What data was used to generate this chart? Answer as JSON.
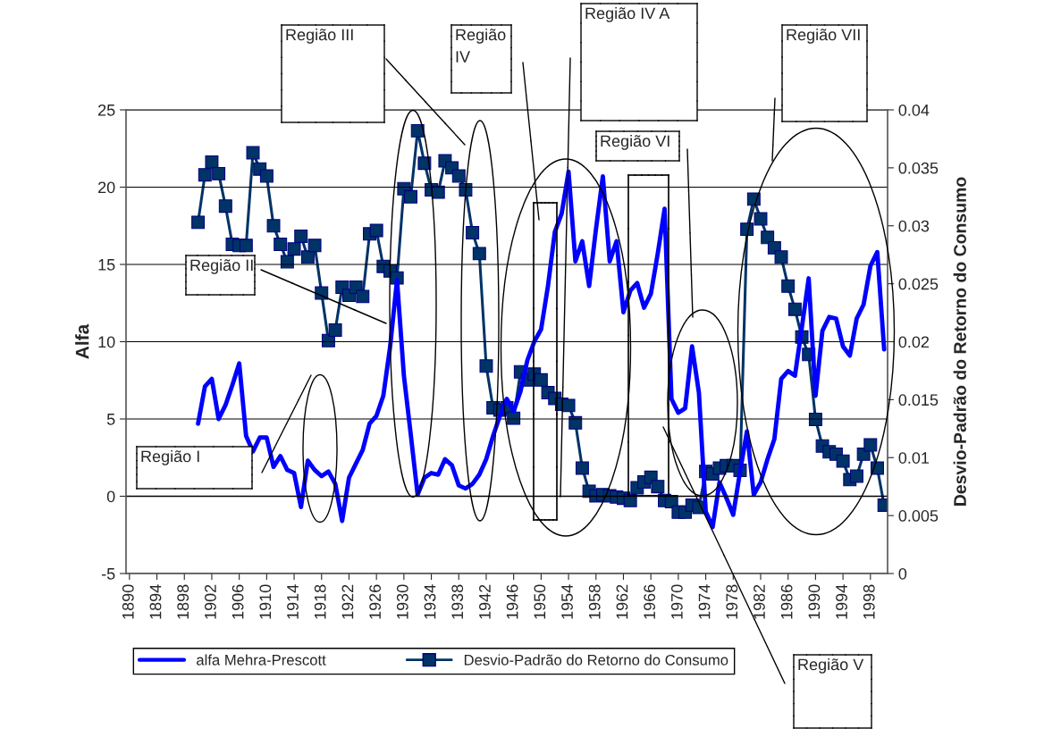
{
  "chart_data": {
    "type": "line",
    "ylabel": "Alfa",
    "y2label": "Desvio-Padrão do Retorno do Consumo",
    "x": [
      1900,
      1901,
      1902,
      1903,
      1904,
      1905,
      1906,
      1907,
      1908,
      1909,
      1910,
      1911,
      1912,
      1913,
      1914,
      1915,
      1916,
      1917,
      1918,
      1919,
      1920,
      1921,
      1922,
      1923,
      1924,
      1925,
      1926,
      1927,
      1928,
      1929,
      1930,
      1931,
      1932,
      1933,
      1934,
      1935,
      1936,
      1937,
      1938,
      1939,
      1940,
      1941,
      1942,
      1943,
      1944,
      1945,
      1946,
      1947,
      1948,
      1949,
      1950,
      1951,
      1952,
      1953,
      1954,
      1955,
      1956,
      1957,
      1958,
      1959,
      1960,
      1961,
      1962,
      1963,
      1964,
      1965,
      1966,
      1967,
      1968,
      1969,
      1970,
      1971,
      1972,
      1973,
      1974,
      1975,
      1976,
      1977,
      1978,
      1979,
      1980,
      1981,
      1982,
      1983,
      1984,
      1985,
      1986,
      1987,
      1988,
      1989,
      1990,
      1991,
      1992,
      1993,
      1994,
      1995,
      1996,
      1997,
      1998,
      1999,
      2000
    ],
    "series": [
      {
        "name": "alfa Mehra-Prescott",
        "color": "#0000ff",
        "marker": "none",
        "values": [
          4.7,
          7.1,
          7.6,
          5.0,
          5.9,
          7.2,
          8.6,
          3.9,
          2.9,
          3.8,
          3.8,
          1.9,
          2.6,
          1.7,
          1.5,
          -0.7,
          2.3,
          1.7,
          1.3,
          1.6,
          0.8,
          -1.6,
          1.2,
          2.1,
          3.0,
          4.7,
          5.2,
          6.5,
          9.7,
          14.0,
          7.8,
          4.0,
          0.1,
          1.2,
          1.5,
          1.4,
          2.4,
          2.0,
          0.7,
          0.5,
          0.8,
          1.4,
          2.4,
          3.9,
          5.2,
          6.3,
          5.5,
          6.8,
          8.8,
          10.0,
          10.8,
          13.6,
          17.1,
          18.3,
          21.0,
          15.2,
          16.5,
          13.6,
          17.3,
          20.7,
          15.2,
          16.5,
          11.9,
          13.3,
          13.8,
          12.2,
          13.1,
          15.7,
          18.6,
          6.3,
          5.4,
          5.7,
          9.7,
          6.7,
          -1.0,
          -2.0,
          0.9,
          -0.1,
          -1.2,
          1.6,
          4.2,
          0.1,
          0.9,
          2.4,
          3.7,
          7.6,
          8.1,
          7.8,
          10.9,
          14.1,
          6.5,
          10.7,
          11.6,
          11.5,
          9.7,
          9.1,
          11.5,
          12.4,
          14.9,
          15.8,
          9.5
        ]
      },
      {
        "name": "Desvio-Padrão do Retorno do Consumo",
        "color": "#003366",
        "marker": "square",
        "axis": "y2",
        "values": [
          0.0303,
          0.0344,
          0.0355,
          0.0345,
          0.0317,
          0.0284,
          0.0283,
          0.0283,
          0.0363,
          0.0349,
          0.0343,
          0.03,
          0.0284,
          0.0269,
          0.028,
          0.0291,
          0.0273,
          0.0283,
          0.0242,
          0.0201,
          0.021,
          0.0247,
          0.024,
          0.0247,
          0.0239,
          0.0293,
          0.0296,
          0.0265,
          0.0261,
          0.0255,
          0.0332,
          0.0325,
          0.0382,
          0.0354,
          0.0331,
          0.0329,
          0.0356,
          0.035,
          0.0343,
          0.0331,
          0.0294,
          0.0276,
          0.0179,
          0.0143,
          0.0141,
          0.0143,
          0.0134,
          0.0174,
          0.0167,
          0.0172,
          0.0167,
          0.0156,
          0.0151,
          0.0146,
          0.0145,
          0.013,
          0.0091,
          0.0071,
          0.0067,
          0.0068,
          0.0067,
          0.0066,
          0.0065,
          0.0063,
          0.0074,
          0.0079,
          0.0083,
          0.0075,
          0.0063,
          0.0062,
          0.0053,
          0.0053,
          0.0059,
          0.0057,
          0.0088,
          0.0086,
          0.0091,
          0.0093,
          0.0093,
          0.0089,
          0.0297,
          0.0323,
          0.0306,
          0.029,
          0.0281,
          0.0273,
          0.0248,
          0.0228,
          0.0204,
          0.0189,
          0.0133,
          0.011,
          0.0105,
          0.0103,
          0.0097,
          0.0081,
          0.0084,
          0.0103,
          0.0111,
          0.0091,
          0.0059
        ]
      }
    ],
    "xlim": [
      1889.5,
      2000.5
    ],
    "xticks": [
      1890,
      1894,
      1898,
      1902,
      1906,
      1910,
      1914,
      1918,
      1922,
      1926,
      1930,
      1934,
      1938,
      1942,
      1946,
      1950,
      1954,
      1958,
      1962,
      1966,
      1970,
      1974,
      1978,
      1982,
      1986,
      1990,
      1994,
      1998
    ],
    "ylim": [
      -5,
      25
    ],
    "yticks": [
      -5,
      0,
      5,
      10,
      15,
      20,
      25
    ],
    "y2lim": [
      0,
      0.04
    ],
    "y2ticks": [
      0,
      0.005,
      0.01,
      0.015,
      0.02,
      0.025,
      0.03,
      0.035,
      0.04
    ],
    "grid": "y",
    "legend": "bottom",
    "line_style": "solid",
    "annotations": [
      "Região I",
      "Região II",
      "Região III",
      "Região\nIV",
      "Região IV A",
      "Região VI",
      "Região VII",
      "Região V"
    ]
  }
}
